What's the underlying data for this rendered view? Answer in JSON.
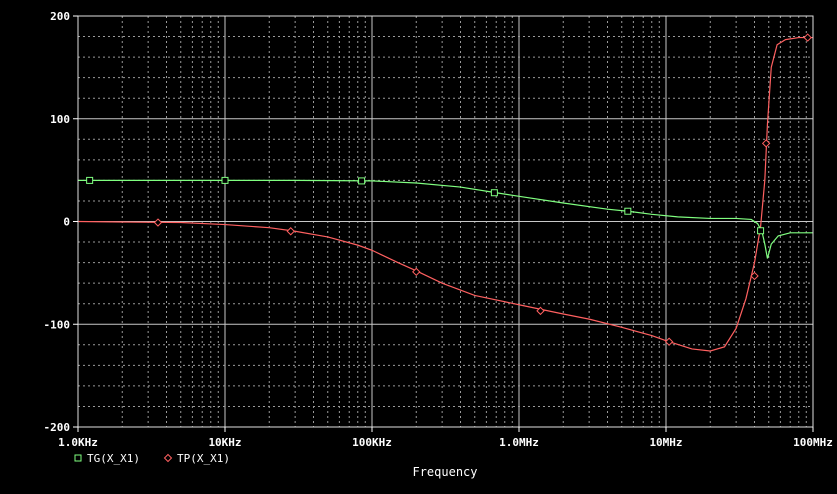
{
  "chart_data": {
    "type": "line",
    "xscale": "log",
    "xlim": [
      1000,
      100000000
    ],
    "ylim": [
      -200,
      200
    ],
    "xlabel": "Frequency",
    "ylabel": "",
    "title": "",
    "grid": true,
    "legend_position": "bottom-left",
    "x_tick_labels": [
      {
        "value": 1000,
        "label": "1.0KHz"
      },
      {
        "value": 10000,
        "label": "10KHz"
      },
      {
        "value": 100000,
        "label": "100KHz"
      },
      {
        "value": 1000000,
        "label": "1.0MHz"
      },
      {
        "value": 10000000,
        "label": "10MHz"
      },
      {
        "value": 100000000,
        "label": "100MHz"
      }
    ],
    "y_tick_labels": [
      {
        "value": 200,
        "label": "200"
      },
      {
        "value": 100,
        "label": "100"
      },
      {
        "value": 0,
        "label": "0"
      },
      {
        "value": -100,
        "label": "-100"
      },
      {
        "value": -200,
        "label": "-200"
      }
    ],
    "series": [
      {
        "name": "TG(X_X1)",
        "color": "#80ff80",
        "marker": "square",
        "points": [
          [
            1000,
            40
          ],
          [
            3000,
            40
          ],
          [
            10000,
            40
          ],
          [
            30000,
            40
          ],
          [
            100000,
            39.5
          ],
          [
            200000,
            37.5
          ],
          [
            400000,
            33.5
          ],
          [
            700000,
            28
          ],
          [
            1000000,
            24.5
          ],
          [
            2000000,
            18
          ],
          [
            4000000,
            12
          ],
          [
            5500000,
            10
          ],
          [
            8000000,
            7
          ],
          [
            12000000,
            4.5
          ],
          [
            20000000,
            3
          ],
          [
            30000000,
            3
          ],
          [
            38000000,
            2
          ],
          [
            42000000,
            -2
          ],
          [
            45000000,
            -10
          ],
          [
            47000000,
            -22
          ],
          [
            49000000,
            -36
          ],
          [
            52000000,
            -22
          ],
          [
            58000000,
            -14
          ],
          [
            70000000,
            -11
          ],
          [
            100000000,
            -11
          ]
        ],
        "marker_points": [
          [
            1200,
            40
          ],
          [
            10000,
            40
          ],
          [
            85000,
            39.5
          ],
          [
            680000,
            28
          ],
          [
            5500000,
            10
          ],
          [
            44000000,
            -9
          ]
        ]
      },
      {
        "name": "TP(X_X1)",
        "color": "#ff6060",
        "marker": "diamond",
        "points": [
          [
            1000,
            0
          ],
          [
            2000,
            -0.5
          ],
          [
            5000,
            -1
          ],
          [
            10000,
            -3
          ],
          [
            20000,
            -6
          ],
          [
            30000,
            -9.5
          ],
          [
            50000,
            -15
          ],
          [
            80000,
            -23
          ],
          [
            100000,
            -28
          ],
          [
            150000,
            -40
          ],
          [
            200000,
            -48
          ],
          [
            300000,
            -60
          ],
          [
            500000,
            -72
          ],
          [
            1000000,
            -81
          ],
          [
            2000000,
            -90
          ],
          [
            3000000,
            -95
          ],
          [
            5000000,
            -103
          ],
          [
            8000000,
            -111
          ],
          [
            10000000,
            -116
          ],
          [
            15000000,
            -124
          ],
          [
            20000000,
            -126
          ],
          [
            25000000,
            -122
          ],
          [
            30000000,
            -104
          ],
          [
            35000000,
            -75
          ],
          [
            40000000,
            -40
          ],
          [
            44000000,
            -5
          ],
          [
            47000000,
            40
          ],
          [
            49000000,
            95
          ],
          [
            52000000,
            150
          ],
          [
            57000000,
            172
          ],
          [
            65000000,
            177
          ],
          [
            80000000,
            179
          ],
          [
            100000000,
            179
          ]
        ],
        "marker_points": [
          [
            3500,
            -1
          ],
          [
            28000,
            -9.5
          ],
          [
            200000,
            -49
          ],
          [
            1400000,
            -87
          ],
          [
            10500000,
            -117
          ],
          [
            40000000,
            -53
          ],
          [
            48000000,
            76
          ],
          [
            92000000,
            179
          ]
        ]
      }
    ]
  }
}
